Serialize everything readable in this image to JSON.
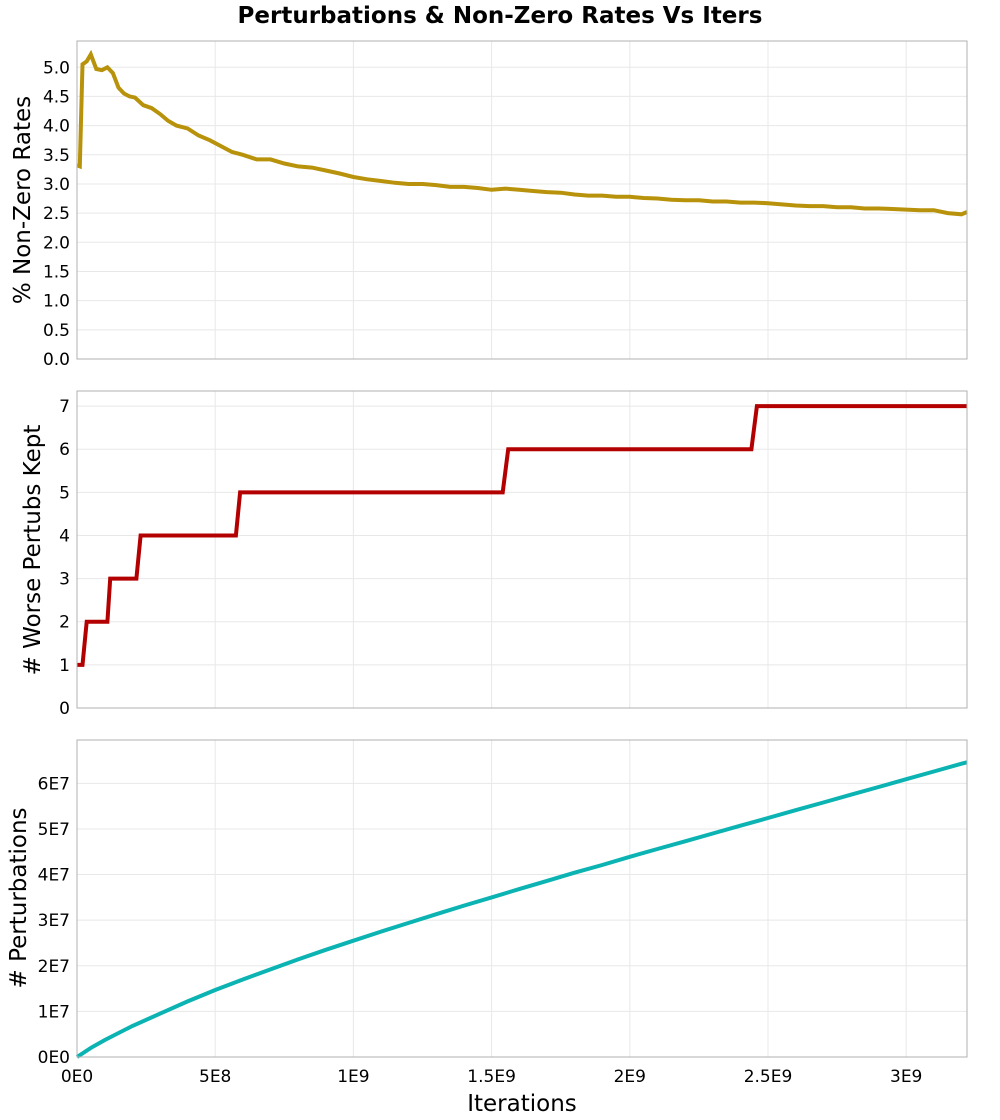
{
  "title": "Perturbations & Non-Zero Rates Vs Iters",
  "xlabel": "Iterations",
  "x_tick_labels": [
    "0E0",
    "5E8",
    "1E9",
    "1.5E9",
    "2E9",
    "2.5E9",
    "3E9"
  ],
  "colors": {
    "rates": "#b8920a",
    "worse": "#b30000",
    "perturbations": "#0cb3b3",
    "grid": "#e8e8e8",
    "frame": "#b0b0b0"
  },
  "chart_data": [
    {
      "type": "line",
      "panel": "top",
      "ylabel": "% Non-Zero Rates",
      "y_tick_labels": [
        "0.0",
        "0.5",
        "1.0",
        "1.5",
        "2.0",
        "2.5",
        "3.0",
        "3.5",
        "4.0",
        "4.5",
        "5.0"
      ],
      "xlim": [
        0,
        3220000000
      ],
      "ylim": [
        0,
        5.45
      ],
      "grid": true,
      "series": [
        {
          "x": [
            0,
            10000000,
            20000000,
            35000000,
            50000000,
            70000000,
            90000000,
            110000000,
            130000000,
            150000000,
            170000000,
            190000000,
            210000000,
            240000000,
            270000000,
            300000000,
            330000000,
            360000000,
            400000000,
            440000000,
            480000000,
            520000000,
            560000000,
            600000000,
            650000000,
            700000000,
            750000000,
            800000000,
            850000000,
            900000000,
            950000000,
            1000000000,
            1050000000,
            1100000000,
            1150000000,
            1200000000,
            1250000000,
            1300000000,
            1350000000,
            1400000000,
            1450000000,
            1500000000,
            1550000000,
            1600000000,
            1650000000,
            1700000000,
            1750000000,
            1800000000,
            1850000000,
            1900000000,
            1950000000,
            2000000000,
            2050000000,
            2100000000,
            2150000000,
            2200000000,
            2250000000,
            2300000000,
            2350000000,
            2400000000,
            2450000000,
            2500000000,
            2550000000,
            2600000000,
            2650000000,
            2700000000,
            2750000000,
            2800000000,
            2850000000,
            2900000000,
            2950000000,
            3000000000,
            3050000000,
            3100000000,
            3150000000,
            3200000000,
            3220000000
          ],
          "values": [
            3.32,
            3.3,
            5.05,
            5.1,
            5.22,
            4.97,
            4.95,
            5.0,
            4.9,
            4.65,
            4.55,
            4.5,
            4.48,
            4.35,
            4.3,
            4.2,
            4.08,
            4.0,
            3.95,
            3.83,
            3.75,
            3.65,
            3.55,
            3.5,
            3.42,
            3.42,
            3.35,
            3.3,
            3.28,
            3.23,
            3.18,
            3.12,
            3.08,
            3.05,
            3.02,
            3.0,
            3.0,
            2.98,
            2.95,
            2.95,
            2.93,
            2.9,
            2.92,
            2.9,
            2.88,
            2.86,
            2.85,
            2.82,
            2.8,
            2.8,
            2.78,
            2.78,
            2.76,
            2.75,
            2.73,
            2.72,
            2.72,
            2.7,
            2.7,
            2.68,
            2.68,
            2.67,
            2.65,
            2.63,
            2.62,
            2.62,
            2.6,
            2.6,
            2.58,
            2.58,
            2.57,
            2.56,
            2.55,
            2.55,
            2.5,
            2.48,
            2.52
          ]
        }
      ]
    },
    {
      "type": "line",
      "panel": "middle",
      "ylabel": "# Worse Pertubs Kept",
      "y_tick_labels": [
        "0",
        "1",
        "2",
        "3",
        "4",
        "5",
        "6",
        "7"
      ],
      "xlim": [
        0,
        3220000000
      ],
      "ylim": [
        0,
        7.35
      ],
      "grid": true,
      "series": [
        {
          "x": [
            0,
            20000000,
            35000000,
            110000000,
            120000000,
            215000000,
            230000000,
            575000000,
            590000000,
            1540000000,
            1560000000,
            2440000000,
            2460000000,
            3220000000
          ],
          "values": [
            1,
            1,
            2,
            2,
            3,
            3,
            4,
            4,
            5,
            5,
            6,
            6,
            7,
            7
          ]
        }
      ]
    },
    {
      "type": "line",
      "panel": "bottom",
      "ylabel": "# Perturbations",
      "y_tick_labels": [
        "0E0",
        "1E7",
        "2E7",
        "3E7",
        "4E7",
        "5E7",
        "6E7"
      ],
      "xlim": [
        0,
        3220000000
      ],
      "ylim": [
        0,
        69500000
      ],
      "grid": true,
      "series": [
        {
          "x": [
            0,
            50000000,
            100000000,
            200000000,
            300000000,
            400000000,
            500000000,
            600000000,
            700000000,
            800000000,
            900000000,
            1000000000,
            1100000000,
            1200000000,
            1300000000,
            1400000000,
            1500000000,
            1600000000,
            1700000000,
            1800000000,
            1900000000,
            2000000000,
            2100000000,
            2200000000,
            2300000000,
            2400000000,
            2500000000,
            2600000000,
            2700000000,
            2800000000,
            2900000000,
            3000000000,
            3100000000,
            3200000000,
            3220000000
          ],
          "values": [
            0,
            2000000,
            3700000,
            6800000,
            9500000,
            12200000,
            14700000,
            17000000,
            19200000,
            21400000,
            23500000,
            25500000,
            27500000,
            29400000,
            31300000,
            33200000,
            35000000,
            36800000,
            38600000,
            40400000,
            42100000,
            43900000,
            45600000,
            47300000,
            49000000,
            50700000,
            52400000,
            54100000,
            55800000,
            57500000,
            59200000,
            60900000,
            62600000,
            64300000,
            64600000
          ]
        }
      ]
    }
  ]
}
